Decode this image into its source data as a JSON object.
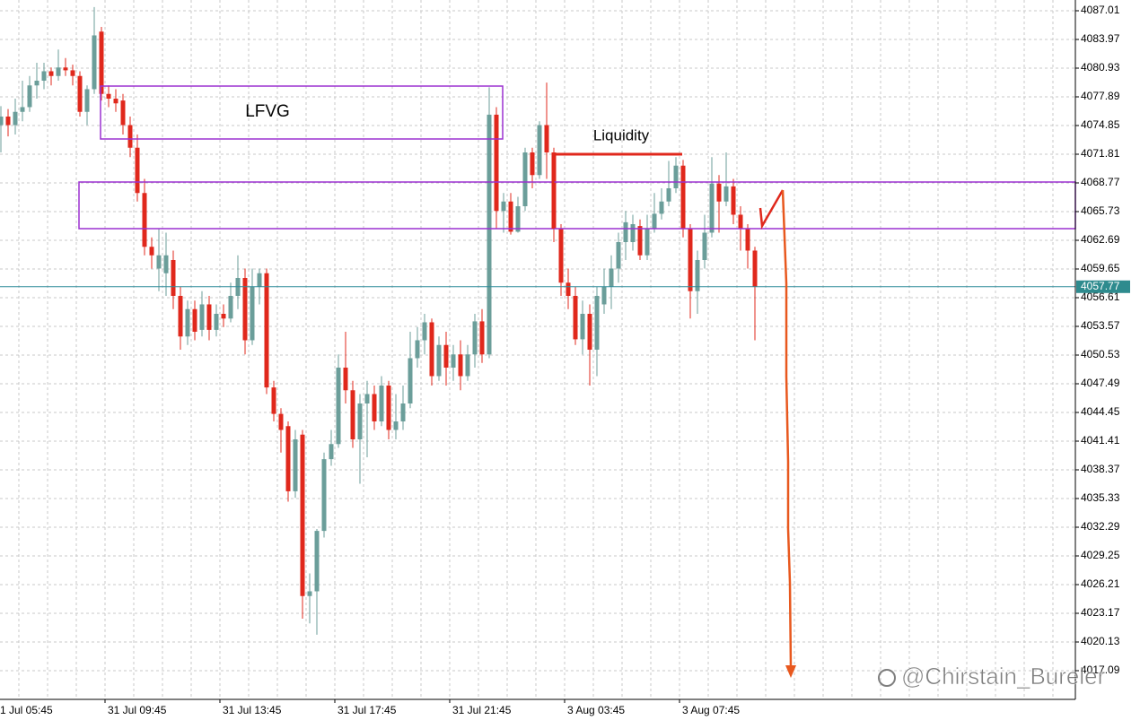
{
  "chart_data": {
    "type": "candlestick",
    "open": [
      4074.9,
      4075.8,
      4074.9,
      4076.3,
      4076.8,
      4079.1,
      4079.6,
      4080.6,
      4080.1,
      4081.0,
      4080.7,
      4080.1,
      4076.3,
      4078.7,
      4084.8,
      4078.2,
      4077.7,
      4077.5,
      4074.9,
      4072.5,
      4067.7,
      4062.0,
      4059.7,
      4059.2,
      4060.6,
      4056.8,
      4052.5,
      4055.4,
      4053.2,
      4055.9,
      4053.2,
      4054.9,
      4054.4,
      4056.8,
      4058.7,
      4052.1,
      4057.8,
      4059.2,
      4047.1,
      4044.3,
      4043.0,
      4036.1,
      4042.1,
      4025.0,
      4025.5,
      4031.9,
      4039.5,
      4041.1,
      4049.2,
      4046.8,
      4041.6,
      4045.4,
      4046.4,
      4043.5,
      4047.3,
      4042.6,
      4043.5,
      4045.4,
      4050.2,
      4052.1,
      4054.0,
      4048.3,
      4051.6,
      4049.2,
      4050.6,
      4048.3,
      4050.6,
      4054.1,
      4050.6,
      4076.0,
      4065.8,
      4066.8,
      4063.6,
      4066.3,
      4072.0,
      4069.6,
      4074.9,
      4072.0,
      4063.9,
      4058.2,
      4056.8,
      4052.2,
      4054.9,
      4051.1,
      4055.9,
      4057.8,
      4059.7,
      4062.5,
      4062.5,
      4064.2,
      4061.1,
      4063.9,
      4065.5,
      4066.8,
      4068.2,
      4070.6,
      4063.9,
      4057.3,
      4060.6,
      4063.5,
      4068.7,
      4066.8,
      4068.4,
      4065.4,
      4063.9,
      4061.6
    ],
    "high": [
      4076.9,
      4076.6,
      4077.7,
      4079.6,
      4080.1,
      4081.5,
      4081.5,
      4081.0,
      4082.9,
      4082.0,
      4081.3,
      4080.6,
      4079.1,
      4087.4,
      4085.3,
      4079.1,
      4078.7,
      4078.2,
      4075.8,
      4073.9,
      4069.2,
      4063.0,
      4063.9,
      4063.5,
      4061.6,
      4057.8,
      4056.3,
      4056.3,
      4057.3,
      4056.8,
      4055.9,
      4055.9,
      4058.2,
      4061.1,
      4059.7,
      4059.7,
      4059.7,
      4059.7,
      4047.8,
      4044.9,
      4043.5,
      4042.6,
      4042.6,
      4027.4,
      4032.1,
      4040.2,
      4042.6,
      4050.6,
      4053.0,
      4047.8,
      4046.4,
      4047.8,
      4047.3,
      4048.3,
      4047.8,
      4046.4,
      4047.3,
      4053.0,
      4053.5,
      4054.9,
      4054.4,
      4052.5,
      4053.0,
      4051.6,
      4052.1,
      4051.6,
      4054.9,
      4055.4,
      4078.9,
      4076.8,
      4067.7,
      4067.7,
      4067.3,
      4072.5,
      4072.5,
      4075.3,
      4079.4,
      4072.5,
      4064.4,
      4059.7,
      4057.8,
      4056.3,
      4055.9,
      4057.8,
      4059.7,
      4061.1,
      4063.5,
      4065.8,
      4065.4,
      4064.9,
      4065.4,
      4067.7,
      4068.2,
      4071.1,
      4071.5,
      4071.2,
      4064.4,
      4061.6,
      4065.4,
      4071.5,
      4069.6,
      4072.0,
      4069.2,
      4066.3,
      4064.4,
      4062.0
    ],
    "low": [
      4072.0,
      4073.7,
      4073.9,
      4075.3,
      4076.3,
      4077.7,
      4078.7,
      4079.1,
      4079.6,
      4080.1,
      4079.1,
      4075.8,
      4074.9,
      4078.2,
      4077.5,
      4076.8,
      4076.3,
      4073.9,
      4071.5,
      4066.8,
      4061.1,
      4059.7,
      4057.3,
      4056.8,
      4055.4,
      4051.1,
      4051.6,
      4052.1,
      4052.5,
      4052.1,
      4052.5,
      4053.5,
      4054.0,
      4055.4,
      4050.6,
      4051.6,
      4055.9,
      4046.4,
      4043.5,
      4040.2,
      4035.0,
      4035.4,
      4022.6,
      4022.1,
      4020.9,
      4031.2,
      4038.8,
      4040.7,
      4045.4,
      4040.7,
      4036.9,
      4039.7,
      4042.6,
      4043.0,
      4041.6,
      4041.6,
      4042.6,
      4044.9,
      4049.2,
      4050.6,
      4047.3,
      4047.8,
      4047.3,
      4047.8,
      4046.8,
      4047.8,
      4049.2,
      4049.7,
      4050.2,
      4063.9,
      4063.5,
      4063.3,
      4063.5,
      4065.8,
      4068.2,
      4069.2,
      4069.2,
      4062.5,
      4056.8,
      4055.4,
      4051.6,
      4050.6,
      4047.3,
      4048.3,
      4054.9,
      4055.4,
      4058.2,
      4060.6,
      4061.6,
      4060.6,
      4060.6,
      4063.5,
      4064.9,
      4066.3,
      4067.7,
      4063.0,
      4054.4,
      4054.9,
      4059.7,
      4063.0,
      4063.5,
      4066.3,
      4064.4,
      4061.6,
      4059.7,
      4052.1
    ],
    "close": [
      4075.8,
      4074.9,
      4076.3,
      4076.8,
      4079.1,
      4079.6,
      4080.6,
      4080.1,
      4081.0,
      4080.7,
      4080.1,
      4076.3,
      4078.7,
      4084.4,
      4078.2,
      4077.7,
      4077.2,
      4074.9,
      4072.5,
      4067.7,
      4062.0,
      4061.1,
      4061.1,
      4061.1,
      4056.8,
      4052.5,
      4055.4,
      4053.0,
      4055.9,
      4053.2,
      4054.9,
      4054.4,
      4056.8,
      4058.7,
      4052.1,
      4057.8,
      4059.2,
      4047.1,
      4044.3,
      4042.6,
      4036.1,
      4041.6,
      4025.0,
      4025.5,
      4031.9,
      4039.5,
      4041.1,
      4049.2,
      4046.8,
      4041.6,
      4045.4,
      4046.4,
      4043.5,
      4047.3,
      4042.6,
      4043.5,
      4045.4,
      4050.2,
      4052.1,
      4054.0,
      4048.3,
      4051.6,
      4049.2,
      4050.6,
      4048.3,
      4050.6,
      4054.1,
      4050.6,
      4076.0,
      4065.8,
      4066.8,
      4063.6,
      4066.3,
      4072.0,
      4069.6,
      4074.9,
      4072.0,
      4063.9,
      4058.2,
      4056.8,
      4052.2,
      4054.9,
      4051.1,
      4056.8,
      4057.8,
      4059.7,
      4062.5,
      4064.6,
      4064.4,
      4061.1,
      4063.9,
      4065.5,
      4066.8,
      4068.2,
      4070.6,
      4063.9,
      4057.3,
      4060.6,
      4063.5,
      4068.7,
      4066.8,
      4068.4,
      4065.4,
      4063.9,
      4061.6,
      4057.77
    ],
    "up_color": "#6b9e9a",
    "down_color": "#e0281c",
    "ylim": [
      4014.05,
      4088.15
    ],
    "yticks": [
      4087.01,
      4083.97,
      4080.93,
      4077.89,
      4074.85,
      4071.81,
      4068.77,
      4065.73,
      4062.69,
      4059.65,
      4056.61,
      4053.57,
      4050.53,
      4047.49,
      4044.45,
      4041.41,
      4038.37,
      4035.33,
      4032.29,
      4029.25,
      4026.21,
      4023.17,
      4020.13,
      4017.09
    ],
    "xlim": [
      -0.125,
      149.625
    ],
    "xticks": [
      {
        "value": -1.5,
        "label": "1 Jul 05:45"
      },
      {
        "value": 14.5,
        "label": "31 Jul 09:45"
      },
      {
        "value": 30.5,
        "label": "31 Jul 13:45"
      },
      {
        "value": 46.5,
        "label": "31 Jul 17:45"
      },
      {
        "value": 62.5,
        "label": "31 Jul 21:45"
      },
      {
        "value": 78.5,
        "label": "3 Aug 03:45"
      },
      {
        "value": 94.5,
        "label": "3 Aug 07:45"
      }
    ],
    "grid": true,
    "current_price": 4057.77,
    "annotations": [
      "LFVG",
      "Liquidity"
    ],
    "watermark": "@Chirstain_Bureler"
  }
}
